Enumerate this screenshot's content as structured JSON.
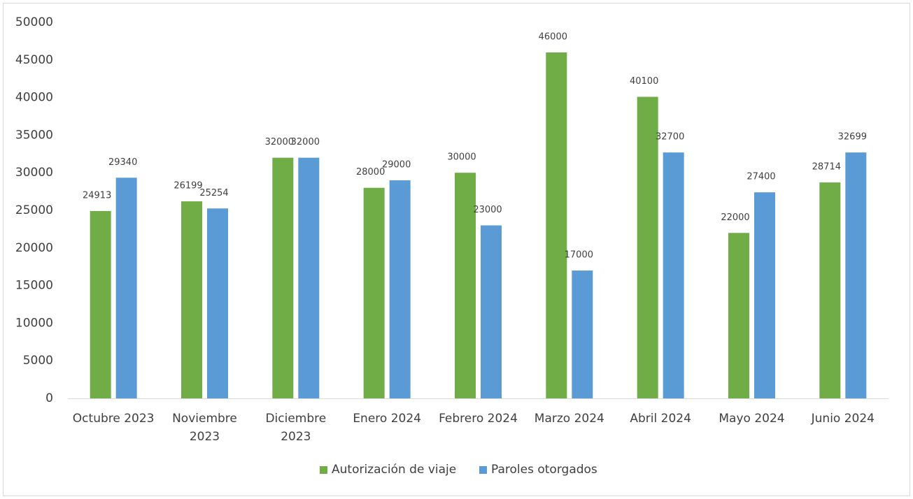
{
  "chart_data": {
    "type": "bar",
    "categories": [
      "Octubre 2023",
      "Noviembre\n2023",
      "Diciembre\n2023",
      "Enero 2024",
      "Febrero 2024",
      "Marzo 2024",
      "Abril 2024",
      "Mayo 2024",
      "Junio 2024"
    ],
    "series": [
      {
        "name": "Autorización de viaje",
        "color": "#70ad47",
        "values": [
          24913,
          26199,
          32000,
          28000,
          30000,
          46000,
          40100,
          22000,
          28714
        ]
      },
      {
        "name": "Paroles otorgados",
        "color": "#5b9bd5",
        "values": [
          29340,
          25254,
          32000,
          29000,
          23000,
          17000,
          32700,
          27400,
          32699
        ]
      }
    ],
    "ylim": [
      0,
      50000
    ],
    "yticks": [
      0,
      5000,
      10000,
      15000,
      20000,
      25000,
      30000,
      35000,
      40000,
      45000,
      50000
    ],
    "grid": false,
    "legend": "bottom"
  }
}
